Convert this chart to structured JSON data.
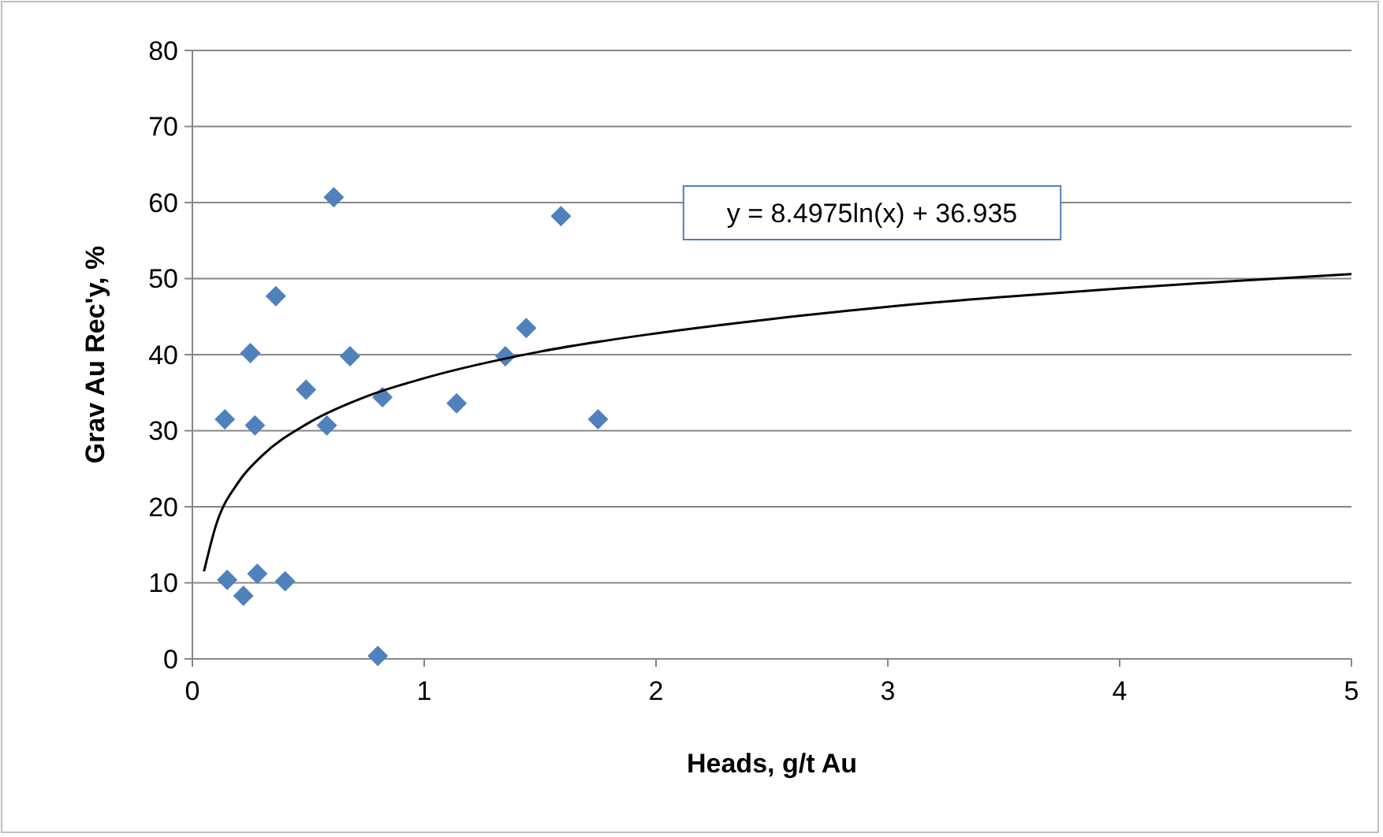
{
  "chart_data": {
    "type": "scatter",
    "xlabel": "Heads, g/t Au",
    "ylabel": "Grav Au Rec'y, %",
    "xlim": [
      0,
      5
    ],
    "xticks": [
      0,
      1,
      2,
      3,
      4,
      5
    ],
    "ylim": [
      0,
      80
    ],
    "yticks": [
      0,
      10,
      20,
      30,
      40,
      50,
      60,
      70,
      80
    ],
    "grid": "y",
    "marker": "diamond",
    "annotations": [
      "y = 8.4975ln(x) + 36.935"
    ],
    "series": [
      {
        "color": "#4f81bd",
        "x": [
          0.14,
          0.15,
          0.22,
          0.25,
          0.27,
          0.28,
          0.36,
          0.4,
          0.49,
          0.58,
          0.61,
          0.68,
          0.8,
          0.82,
          1.14,
          1.35,
          1.44,
          1.59,
          1.75
        ],
        "values": [
          31.5,
          10.4,
          8.3,
          40.2,
          30.7,
          11.2,
          47.7,
          10.2,
          35.4,
          30.7,
          60.7,
          39.8,
          0.4,
          34.4,
          33.6,
          39.8,
          43.5,
          58.2,
          31.5
        ]
      },
      {
        "type": "line",
        "color": "#000000",
        "marker": "none",
        "x": [
          0.05,
          0.1,
          0.2,
          0.3,
          0.5,
          0.75,
          1,
          1.5,
          2,
          2.5,
          3,
          3.5,
          4,
          4.5,
          5
        ],
        "values": [
          11.5,
          17.4,
          23.3,
          26.7,
          31,
          34.5,
          36.9,
          40.4,
          42.8,
          44.7,
          46.3,
          47.6,
          48.7,
          49.7,
          50.6
        ]
      }
    ]
  }
}
